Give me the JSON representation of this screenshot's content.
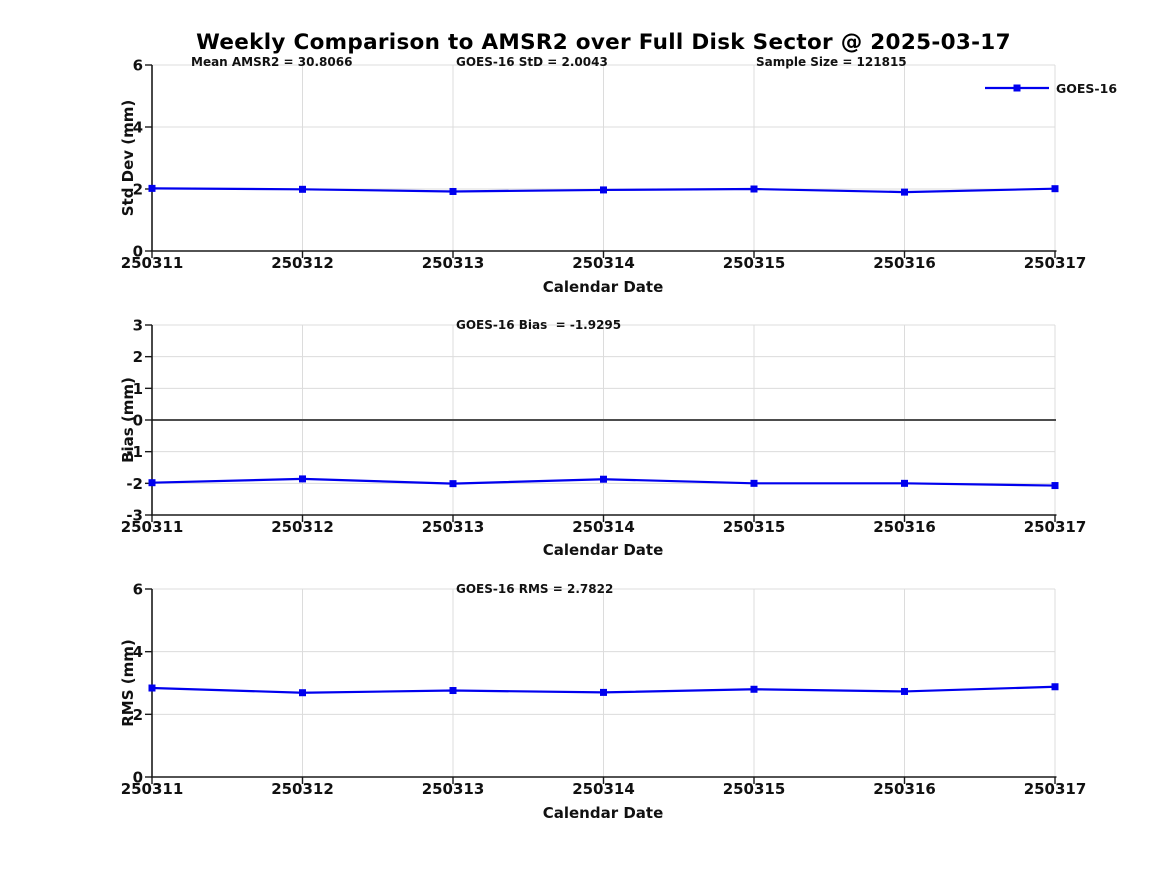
{
  "title": "Weekly Comparison to AMSR2 over Full Disk Sector @ 2025-03-17",
  "colors": {
    "series_line": "#0000EE",
    "axis": "#1a1a1a",
    "grid": "#dcdcdc",
    "zero_line": "#4d4d4d",
    "text": "#111111"
  },
  "chart_data": [
    {
      "type": "line",
      "title": "",
      "annotations": [
        "Mean AMSR2 = 30.8066",
        "GOES-16 StD = 2.0043",
        "Sample Size = 121815"
      ],
      "x": [
        "250311",
        "250312",
        "250313",
        "250314",
        "250315",
        "250316",
        "250317"
      ],
      "series": [
        {
          "name": "GOES-16",
          "color": "#0000EE",
          "marker": "square",
          "values": [
            2.02,
            1.99,
            1.92,
            1.97,
            2.0,
            1.9,
            2.01
          ]
        }
      ],
      "xlabel": "Calendar Date",
      "ylabel": "Std Dev (mm)",
      "ylim": [
        0,
        6
      ],
      "yticks": [
        0,
        2,
        4,
        6
      ],
      "grid": true,
      "zero_line": false,
      "legend": {
        "label": "GOES-16",
        "position": "top-right"
      }
    },
    {
      "type": "line",
      "title": "",
      "annotations": [
        "GOES-16 Bias  = -1.9295"
      ],
      "x": [
        "250311",
        "250312",
        "250313",
        "250314",
        "250315",
        "250316",
        "250317"
      ],
      "series": [
        {
          "name": "GOES-16",
          "color": "#0000EE",
          "marker": "square",
          "values": [
            -1.98,
            -1.86,
            -2.01,
            -1.87,
            -2.0,
            -2.0,
            -2.07
          ]
        }
      ],
      "xlabel": "Calendar Date",
      "ylabel": "Bias (mm)",
      "ylim": [
        -3,
        3
      ],
      "yticks": [
        -3,
        -2,
        -1,
        0,
        1,
        2,
        3
      ],
      "grid": true,
      "zero_line": true,
      "legend": null
    },
    {
      "type": "line",
      "title": "",
      "annotations": [
        "GOES-16 RMS = 2.7822"
      ],
      "x": [
        "250311",
        "250312",
        "250313",
        "250314",
        "250315",
        "250316",
        "250317"
      ],
      "series": [
        {
          "name": "GOES-16",
          "color": "#0000EE",
          "marker": "square",
          "values": [
            2.84,
            2.69,
            2.76,
            2.7,
            2.8,
            2.73,
            2.88
          ]
        }
      ],
      "xlabel": "Calendar Date",
      "ylabel": "RMS (mm)",
      "ylim": [
        0,
        6
      ],
      "yticks": [
        0,
        2,
        4,
        6
      ],
      "grid": true,
      "zero_line": false,
      "legend": null
    }
  ]
}
